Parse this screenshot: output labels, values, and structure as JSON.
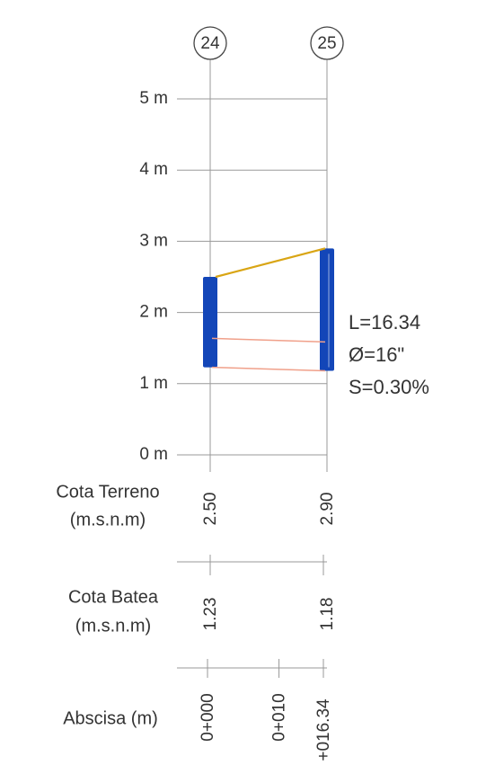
{
  "nodes": [
    {
      "label": "24",
      "terrain": {
        "value": 2.5,
        "label": "2.50"
      },
      "invert": {
        "value": 1.23,
        "label": "1.23"
      }
    },
    {
      "label": "25",
      "terrain": {
        "value": 2.9,
        "label": "2.90"
      },
      "invert": {
        "value": 1.18,
        "label": "1.18"
      }
    }
  ],
  "axis": {
    "ylim": [
      0,
      5
    ],
    "yticks": [
      {
        "value": 0,
        "label": "0 m"
      },
      {
        "value": 1,
        "label": "1 m"
      },
      {
        "value": 2,
        "label": "2 m"
      },
      {
        "value": 3,
        "label": "3 m"
      },
      {
        "value": 4,
        "label": "4 m"
      },
      {
        "value": 5,
        "label": "5 m"
      }
    ]
  },
  "pipe": {
    "length": {
      "value": 16.34,
      "label": "L=16.34"
    },
    "diameter": {
      "value": 16,
      "label": "Ø=16\""
    },
    "slope": {
      "value": 0.3,
      "label": "S=0.30%"
    }
  },
  "rows": {
    "terrain": [
      "Cota  Terreno",
      "(m.s.n.m)"
    ],
    "invert": [
      "Cota  Batea",
      "(m.s.n.m)"
    ],
    "abscissa": "Abscisa (m)"
  },
  "abscissas": [
    {
      "value": 0,
      "label": "0+000"
    },
    {
      "value": 10,
      "label": "0+010"
    },
    {
      "value": 16.34,
      "label": "+016.34"
    }
  ]
}
